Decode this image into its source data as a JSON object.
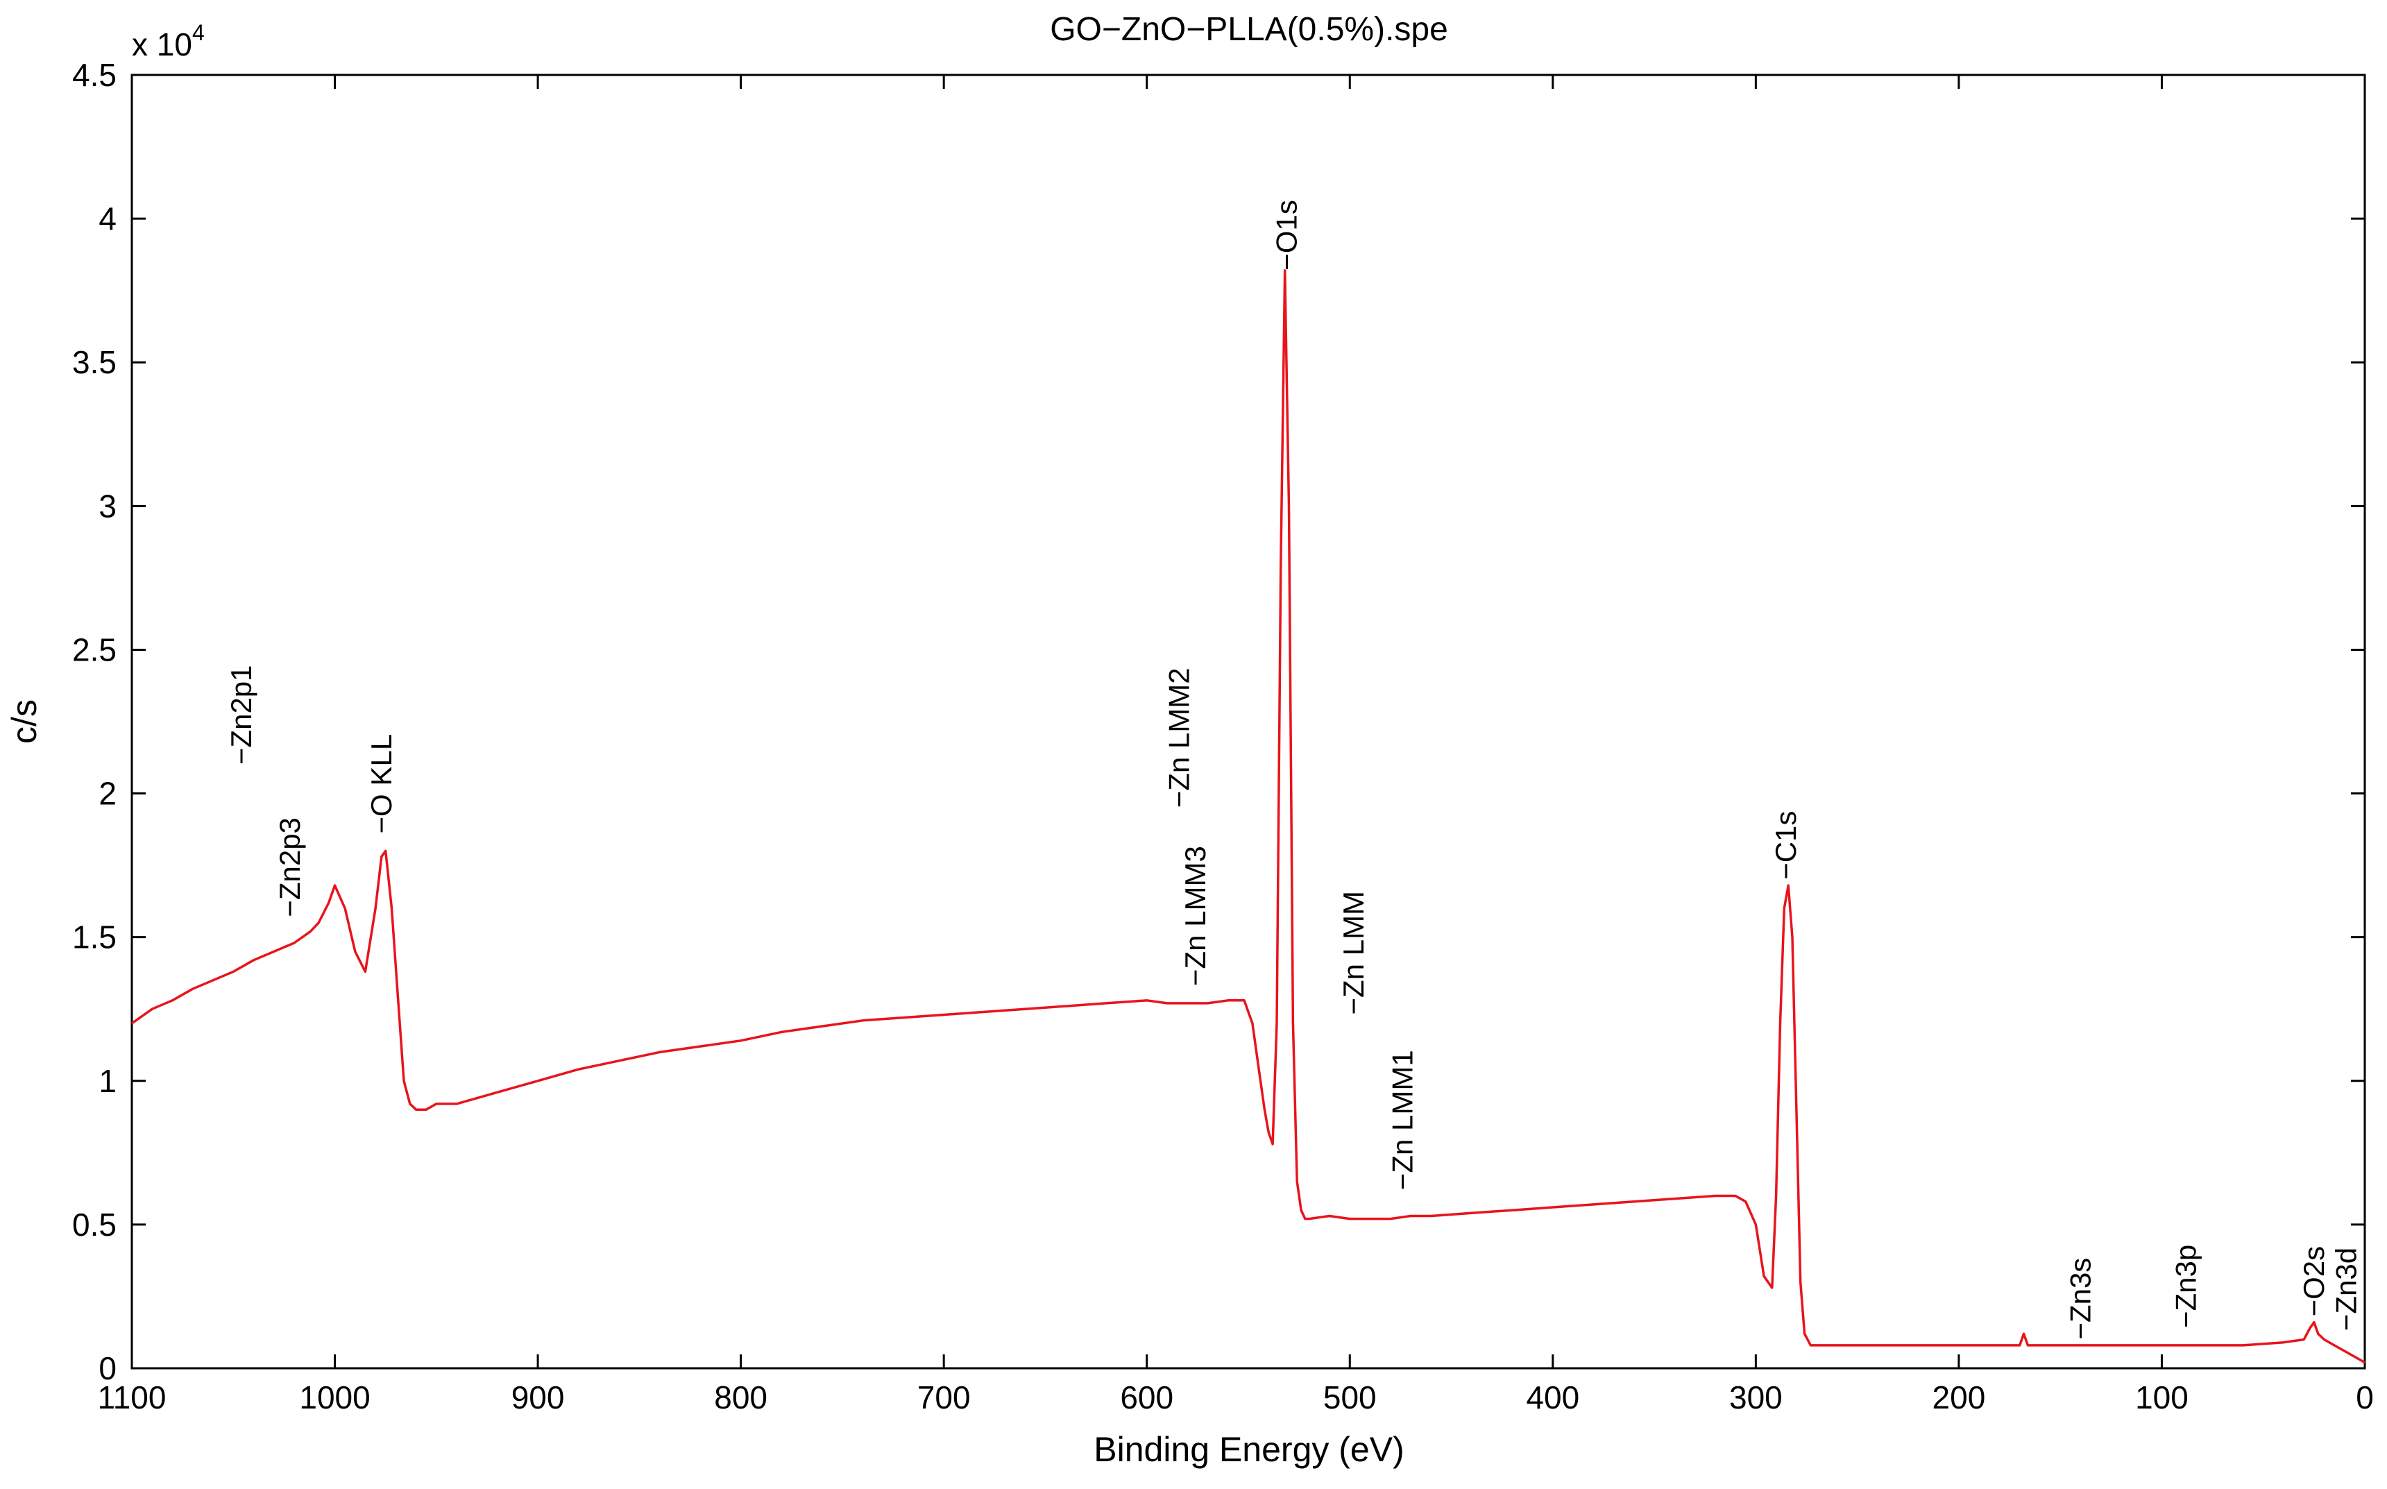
{
  "chart_data": {
    "type": "line",
    "title": "GO−ZnO−PLLA(0.5%).spe",
    "xlabel": "Binding Energy (eV)",
    "ylabel": "c/s",
    "y_multiplier_base": "x 10",
    "y_multiplier_exp": "4",
    "xlim": [
      1100,
      0
    ],
    "ylim": [
      0,
      4.5
    ],
    "x_ticks": [
      1100,
      1000,
      900,
      800,
      700,
      600,
      500,
      400,
      300,
      200,
      100,
      0
    ],
    "x_tick_labels": [
      "1100",
      "1000",
      "900",
      "800",
      "700",
      "600",
      "500",
      "400",
      "300",
      "200",
      "100",
      "0"
    ],
    "y_ticks": [
      0,
      0.5,
      1,
      1.5,
      2,
      2.5,
      3,
      3.5,
      4,
      4.5
    ],
    "y_tick_labels": [
      "0",
      "0.5",
      "1",
      "1.5",
      "2",
      "2.5",
      "3",
      "3.5",
      "4",
      "4.5"
    ],
    "series": [
      {
        "name": "GO-ZnO-PLLA(0.5%)",
        "color": "#e8141c",
        "x": [
          1100,
          1090,
          1080,
          1070,
          1060,
          1050,
          1040,
          1030,
          1020,
          1012,
          1008,
          1003,
          1000,
          995,
          990,
          985,
          980,
          977,
          975,
          972,
          969,
          966,
          963,
          960,
          955,
          950,
          940,
          920,
          900,
          880,
          860,
          840,
          820,
          800,
          780,
          760,
          740,
          720,
          700,
          680,
          660,
          640,
          620,
          600,
          590,
          580,
          570,
          560,
          552,
          548,
          545,
          542,
          540,
          538,
          536,
          534,
          532,
          530,
          528,
          526,
          524,
          522,
          520,
          510,
          500,
          490,
          480,
          470,
          460,
          440,
          420,
          400,
          380,
          360,
          340,
          320,
          310,
          305,
          300,
          296,
          292,
          290,
          288,
          286,
          284,
          282,
          280,
          278,
          276,
          273,
          270,
          260,
          240,
          220,
          200,
          180,
          170,
          168,
          166,
          160,
          140,
          120,
          100,
          80,
          60,
          40,
          30,
          27,
          25,
          23,
          20,
          15,
          10,
          5,
          0
        ],
        "y": [
          1.2,
          1.25,
          1.28,
          1.32,
          1.35,
          1.38,
          1.42,
          1.45,
          1.48,
          1.52,
          1.55,
          1.62,
          1.68,
          1.6,
          1.45,
          1.38,
          1.6,
          1.78,
          1.8,
          1.6,
          1.3,
          1.0,
          0.92,
          0.9,
          0.9,
          0.92,
          0.92,
          0.96,
          1.0,
          1.04,
          1.07,
          1.1,
          1.12,
          1.14,
          1.17,
          1.19,
          1.21,
          1.22,
          1.23,
          1.24,
          1.25,
          1.26,
          1.27,
          1.28,
          1.27,
          1.27,
          1.27,
          1.28,
          1.28,
          1.2,
          1.05,
          0.9,
          0.82,
          0.78,
          1.2,
          2.8,
          3.82,
          3.0,
          1.2,
          0.65,
          0.55,
          0.52,
          0.52,
          0.53,
          0.52,
          0.52,
          0.52,
          0.53,
          0.53,
          0.54,
          0.55,
          0.56,
          0.57,
          0.58,
          0.59,
          0.6,
          0.6,
          0.58,
          0.5,
          0.32,
          0.28,
          0.6,
          1.2,
          1.6,
          1.68,
          1.5,
          0.9,
          0.3,
          0.12,
          0.08,
          0.08,
          0.08,
          0.08,
          0.08,
          0.08,
          0.08,
          0.08,
          0.12,
          0.08,
          0.08,
          0.08,
          0.08,
          0.08,
          0.08,
          0.08,
          0.09,
          0.1,
          0.14,
          0.16,
          0.12,
          0.1,
          0.08,
          0.06,
          0.04,
          0.02
        ]
      }
    ],
    "annotations": [
      {
        "label": "−Zn2p1",
        "x": 1046,
        "y": 2.1
      },
      {
        "label": "−Zn2p3",
        "x": 1022,
        "y": 1.57
      },
      {
        "label": "−O KLL",
        "x": 977,
        "y": 1.86
      },
      {
        "label": "−Zn LMM2",
        "x": 584,
        "y": 1.95
      },
      {
        "label": "−Zn LMM3",
        "x": 576,
        "y": 1.33
      },
      {
        "label": "−O1s",
        "x": 531,
        "y": 3.82
      },
      {
        "label": "−Zn LMM",
        "x": 498,
        "y": 1.23
      },
      {
        "label": "−Zn LMM1",
        "x": 474,
        "y": 0.62
      },
      {
        "label": "−C1s",
        "x": 285,
        "y": 1.7
      },
      {
        "label": "−Zn3s",
        "x": 140,
        "y": 0.1
      },
      {
        "label": "−Zn3p",
        "x": 88,
        "y": 0.14
      },
      {
        "label": "−O2s",
        "x": 25,
        "y": 0.18
      },
      {
        "label": "−Zn3d",
        "x": 9,
        "y": 0.13
      }
    ],
    "grid": false,
    "legend": "none"
  }
}
